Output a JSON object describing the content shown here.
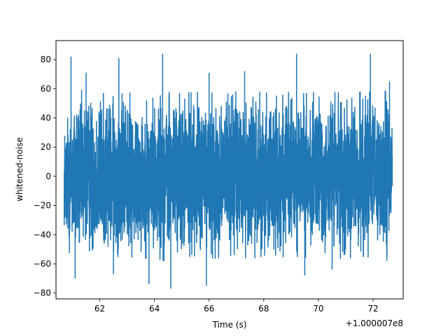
{
  "chart_data": {
    "type": "line",
    "title": "",
    "xlabel": "Time (s)",
    "ylabel": "whitened-noise",
    "x_offset_label": "+1.000007e8",
    "xlim": [
      60.4,
      73.1
    ],
    "ylim": [
      -84,
      93
    ],
    "x_ticks": [
      62,
      64,
      66,
      68,
      70,
      72
    ],
    "x_tick_labels": [
      "62",
      "64",
      "66",
      "68",
      "70",
      "72"
    ],
    "y_ticks": [
      -80,
      -60,
      -40,
      -20,
      0,
      20,
      40,
      60,
      80
    ],
    "y_tick_labels": [
      "−80",
      "−60",
      "−40",
      "−20",
      "0",
      "20",
      "40",
      "60",
      "80"
    ],
    "grid": false,
    "series": [
      {
        "color": "#1f77b4",
        "x_range": [
          60.7,
          72.7
        ],
        "envelope": {
          "x": [
            60.7,
            61.0,
            61.5,
            62.0,
            62.5,
            63.0,
            63.5,
            64.0,
            64.5,
            65.0,
            65.5,
            66.0,
            66.5,
            67.0,
            67.5,
            68.0,
            68.5,
            69.0,
            69.5,
            70.0,
            70.5,
            71.0,
            71.5,
            72.0,
            72.5,
            72.7
          ],
          "upper": [
            35,
            58,
            55,
            55,
            52,
            55,
            52,
            53,
            55,
            54,
            55,
            54,
            56,
            55,
            55,
            55,
            54,
            55,
            54,
            55,
            55,
            54,
            55,
            55,
            56,
            45
          ],
          "lower": [
            -40,
            -58,
            -53,
            -52,
            -53,
            -52,
            -54,
            -53,
            -56,
            -53,
            -52,
            -54,
            -53,
            -52,
            -54,
            -52,
            -53,
            -52,
            -53,
            -52,
            -53,
            -54,
            -52,
            -53,
            -55,
            -30
          ]
        },
        "peaks": [
          {
            "x": 60.95,
            "y": 82
          },
          {
            "x": 61.5,
            "y": 71
          },
          {
            "x": 62.7,
            "y": 81
          },
          {
            "x": 64.3,
            "y": 84
          },
          {
            "x": 66.0,
            "y": 71
          },
          {
            "x": 67.3,
            "y": 72
          },
          {
            "x": 69.2,
            "y": 84
          },
          {
            "x": 71.9,
            "y": 84
          },
          {
            "x": 72.6,
            "y": 65
          },
          {
            "x": 61.1,
            "y": -70
          },
          {
            "x": 62.5,
            "y": -67
          },
          {
            "x": 63.8,
            "y": -74
          },
          {
            "x": 64.6,
            "y": -77
          },
          {
            "x": 65.9,
            "y": -75
          },
          {
            "x": 69.5,
            "y": -68
          },
          {
            "x": 70.5,
            "y": -64
          },
          {
            "x": 72.5,
            "y": -58
          }
        ]
      }
    ]
  }
}
